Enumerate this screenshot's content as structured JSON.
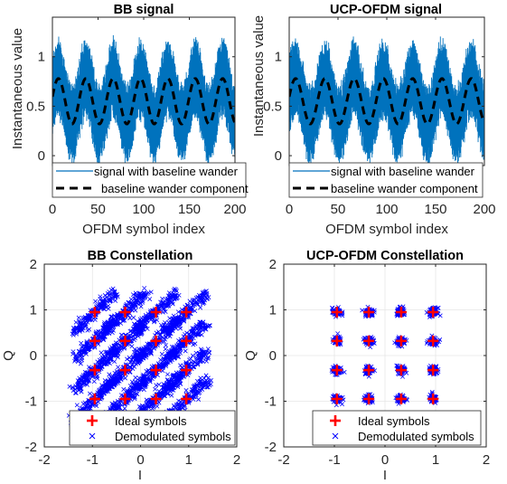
{
  "colors": {
    "signal": "#0072bd",
    "wander": "#000000",
    "ideal": "#ff0000",
    "demod": "#0000ff",
    "grid": "#e6e6e6"
  },
  "chart_data": [
    {
      "id": "bb-signal",
      "type": "line",
      "title": "BB signal",
      "xlabel": "OFDM symbol index",
      "ylabel": "Instantaneous value",
      "xlim": [
        0,
        200
      ],
      "ylim": [
        -0.1,
        1.4
      ],
      "xticks": [
        0,
        50,
        100,
        150,
        200
      ],
      "yticks": [
        0,
        0.5,
        1
      ],
      "yticklabels": [
        "0",
        "0.5",
        "1"
      ],
      "grid": false,
      "legend_location": "bottom",
      "series": [
        {
          "name": "signal with baseline wander",
          "style": "noisy band",
          "center": [
            0.55,
            0.8,
            0.3,
            0.8,
            0.3,
            0.8,
            0.3,
            0.8,
            0.3,
            0.8,
            0.5
          ],
          "amplitude_range": [
            0.0,
            0.45
          ]
        },
        {
          "name": "baseline wander component",
          "style": "dashed",
          "x": [
            0,
            10,
            25,
            40,
            55,
            70,
            85,
            100,
            115,
            130,
            145,
            160,
            175,
            190,
            200
          ],
          "y": [
            0.55,
            0.75,
            0.3,
            0.75,
            0.3,
            0.75,
            0.3,
            0.75,
            0.3,
            0.75,
            0.3,
            0.75,
            0.3,
            0.75,
            0.55
          ]
        }
      ]
    },
    {
      "id": "ucp-signal",
      "type": "line",
      "title": "UCP-OFDM signal",
      "xlabel": "OFDM symbol index",
      "ylabel": "Instantaneous value",
      "xlim": [
        0,
        200
      ],
      "ylim": [
        -0.1,
        1.4
      ],
      "xticks": [
        0,
        50,
        100,
        150,
        200
      ],
      "yticks": [
        0,
        0.5,
        1
      ],
      "yticklabels": [
        "0",
        "0.5",
        "1"
      ],
      "grid": false,
      "legend_location": "bottom",
      "series": [
        {
          "name": "signal with  baseline wander",
          "style": "noisy band",
          "amplitude_range": [
            0.0,
            0.45
          ]
        },
        {
          "name": "baseline wander component",
          "style": "dashed",
          "x": [
            0,
            10,
            25,
            40,
            55,
            70,
            85,
            100,
            115,
            130,
            145,
            160,
            175,
            190,
            200
          ],
          "y": [
            0.55,
            0.75,
            0.3,
            0.75,
            0.3,
            0.75,
            0.3,
            0.75,
            0.3,
            0.75,
            0.3,
            0.75,
            0.3,
            0.75,
            0.55
          ]
        }
      ]
    },
    {
      "id": "bb-constellation",
      "type": "scatter",
      "title": "BB Constellation",
      "xlabel": "I",
      "ylabel": "Q",
      "xlim": [
        -2,
        2
      ],
      "ylim": [
        -2,
        2
      ],
      "xticks": [
        -2,
        -1,
        0,
        1,
        2
      ],
      "yticks": [
        -2,
        -1,
        0,
        1,
        2
      ],
      "grid": true,
      "legend_location": "bottom",
      "ideal_symbols": {
        "name": "Ideal symbols",
        "levels": [
          -0.95,
          -0.32,
          0.32,
          0.95
        ]
      },
      "demodulated_symbols": {
        "name": "Demodulated symbols",
        "spread": "diagonal streaks",
        "streak_half_length": 0.42
      }
    },
    {
      "id": "ucp-constellation",
      "type": "scatter",
      "title": "UCP-OFDM Constellation",
      "xlabel": "I",
      "ylabel": "Q",
      "xlim": [
        -2,
        2
      ],
      "ylim": [
        -2,
        2
      ],
      "xticks": [
        -2,
        -1,
        0,
        1,
        2
      ],
      "yticks": [
        -2,
        -1,
        0,
        1,
        2
      ],
      "grid": true,
      "legend_location": "bottom",
      "ideal_symbols": {
        "name": "Ideal symbols",
        "levels": [
          -0.95,
          -0.32,
          0.32,
          0.95
        ]
      },
      "demodulated_symbols": {
        "name": "Demodulated symbols",
        "spread": "tight clusters",
        "cluster_radius": 0.1
      }
    }
  ]
}
